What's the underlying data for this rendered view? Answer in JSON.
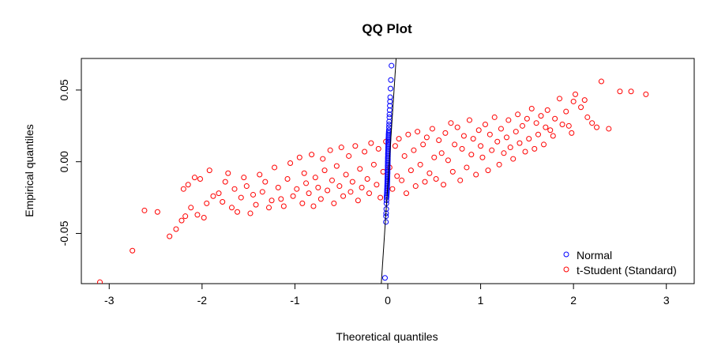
{
  "chart_data": {
    "type": "scatter",
    "title": "QQ Plot",
    "xlabel": "Theoretical quantiles",
    "ylabel": "Empirical quantiles",
    "xlim": [
      -3.3,
      3.3
    ],
    "ylim": [
      -0.085,
      0.072
    ],
    "x_ticks": [
      -3,
      -2,
      -1,
      0,
      1,
      2,
      3
    ],
    "x_tick_labels": [
      "-3",
      "-2",
      "-1",
      "0",
      "1",
      "2",
      "3"
    ],
    "y_ticks": [
      -0.05,
      0.0,
      0.05
    ],
    "y_tick_labels": [
      "-0.05",
      "0.00",
      "0.05"
    ],
    "grid": false,
    "legend_position": "bottom-right",
    "reference_line": {
      "color": "#000000",
      "points": [
        [
          -0.07,
          -0.085
        ],
        [
          0.09,
          0.072
        ]
      ]
    },
    "series": [
      {
        "name": "Normal",
        "color": "#0000ff",
        "marker": "open-circle",
        "points": [
          [
            -0.03,
            -0.081
          ],
          [
            -0.02,
            -0.042
          ],
          [
            -0.019,
            -0.038
          ],
          [
            -0.018,
            -0.036
          ],
          [
            -0.016,
            -0.033
          ],
          [
            -0.015,
            -0.029
          ],
          [
            -0.014,
            -0.027
          ],
          [
            -0.013,
            -0.025
          ],
          [
            -0.012,
            -0.024
          ],
          [
            -0.011,
            -0.023
          ],
          [
            -0.01,
            -0.022
          ],
          [
            -0.009,
            -0.021
          ],
          [
            -0.009,
            -0.02
          ],
          [
            -0.008,
            -0.019
          ],
          [
            -0.007,
            -0.018
          ],
          [
            -0.007,
            -0.017
          ],
          [
            -0.006,
            -0.016
          ],
          [
            -0.006,
            -0.015
          ],
          [
            -0.005,
            -0.014
          ],
          [
            -0.005,
            -0.013
          ],
          [
            -0.004,
            -0.012
          ],
          [
            -0.004,
            -0.011
          ],
          [
            -0.003,
            -0.01
          ],
          [
            -0.003,
            -0.009
          ],
          [
            -0.002,
            -0.008
          ],
          [
            -0.002,
            -0.007
          ],
          [
            -0.002,
            -0.006
          ],
          [
            -0.001,
            -0.005
          ],
          [
            -0.001,
            -0.004
          ],
          [
            -0.001,
            -0.003
          ],
          [
            0.0,
            -0.002
          ],
          [
            0.0,
            -0.001
          ],
          [
            0.0,
            0.0
          ],
          [
            0.001,
            0.001
          ],
          [
            0.001,
            0.002
          ],
          [
            0.001,
            0.003
          ],
          [
            0.002,
            0.004
          ],
          [
            0.002,
            0.005
          ],
          [
            0.002,
            0.006
          ],
          [
            0.003,
            0.007
          ],
          [
            0.003,
            0.008
          ],
          [
            0.004,
            0.009
          ],
          [
            0.004,
            0.01
          ],
          [
            0.005,
            0.011
          ],
          [
            0.005,
            0.012
          ],
          [
            0.006,
            0.013
          ],
          [
            0.006,
            0.014
          ],
          [
            0.007,
            0.015
          ],
          [
            0.007,
            0.016
          ],
          [
            0.008,
            0.017
          ],
          [
            0.009,
            0.018
          ],
          [
            0.009,
            0.019
          ],
          [
            0.01,
            0.02
          ],
          [
            0.011,
            0.021
          ],
          [
            0.012,
            0.022
          ],
          [
            0.013,
            0.024
          ],
          [
            0.014,
            0.026
          ],
          [
            0.015,
            0.028
          ],
          [
            0.017,
            0.031
          ],
          [
            0.018,
            0.033
          ],
          [
            0.02,
            0.036
          ],
          [
            0.022,
            0.039
          ],
          [
            0.024,
            0.042
          ],
          [
            0.026,
            0.045
          ],
          [
            0.03,
            0.051
          ],
          [
            0.033,
            0.057
          ],
          [
            0.04,
            0.067
          ]
        ]
      },
      {
        "name": "t-Student (Standard)",
        "color": "#ff0000",
        "marker": "open-circle",
        "points": [
          [
            -3.1,
            -0.084
          ],
          [
            -2.75,
            -0.062
          ],
          [
            -2.62,
            -0.034
          ],
          [
            -2.48,
            -0.035
          ],
          [
            -2.35,
            -0.052
          ],
          [
            -2.28,
            -0.047
          ],
          [
            -2.22,
            -0.041
          ],
          [
            -2.18,
            -0.038
          ],
          [
            -2.12,
            -0.032
          ],
          [
            -2.05,
            -0.037
          ],
          [
            -2.2,
            -0.019
          ],
          [
            -2.15,
            -0.016
          ],
          [
            -2.08,
            -0.011
          ],
          [
            -2.02,
            -0.012
          ],
          [
            -1.98,
            -0.039
          ],
          [
            -1.95,
            -0.029
          ],
          [
            -1.92,
            -0.006
          ],
          [
            -1.88,
            -0.024
          ],
          [
            -1.82,
            -0.022
          ],
          [
            -1.78,
            -0.028
          ],
          [
            -1.75,
            -0.014
          ],
          [
            -1.72,
            -0.008
          ],
          [
            -1.68,
            -0.032
          ],
          [
            -1.65,
            -0.019
          ],
          [
            -1.62,
            -0.035
          ],
          [
            -1.58,
            -0.025
          ],
          [
            -1.55,
            -0.011
          ],
          [
            -1.52,
            -0.017
          ],
          [
            -1.48,
            -0.036
          ],
          [
            -1.45,
            -0.023
          ],
          [
            -1.42,
            -0.03
          ],
          [
            -1.38,
            -0.009
          ],
          [
            -1.35,
            -0.021
          ],
          [
            -1.32,
            -0.014
          ],
          [
            -1.28,
            -0.032
          ],
          [
            -1.25,
            -0.027
          ],
          [
            -1.22,
            -0.004
          ],
          [
            -1.18,
            -0.018
          ],
          [
            -1.15,
            -0.026
          ],
          [
            -1.12,
            -0.031
          ],
          [
            -1.08,
            -0.012
          ],
          [
            -1.05,
            -0.001
          ],
          [
            -1.02,
            -0.024
          ],
          [
            -0.98,
            -0.019
          ],
          [
            -0.95,
            0.003
          ],
          [
            -0.92,
            -0.029
          ],
          [
            -0.9,
            -0.008
          ],
          [
            -0.88,
            -0.015
          ],
          [
            -0.85,
            -0.022
          ],
          [
            -0.82,
            0.005
          ],
          [
            -0.8,
            -0.031
          ],
          [
            -0.78,
            -0.011
          ],
          [
            -0.75,
            -0.018
          ],
          [
            -0.72,
            -0.026
          ],
          [
            -0.7,
            0.002
          ],
          [
            -0.68,
            -0.006
          ],
          [
            -0.65,
            -0.02
          ],
          [
            -0.62,
            0.008
          ],
          [
            -0.6,
            -0.013
          ],
          [
            -0.58,
            -0.029
          ],
          [
            -0.55,
            -0.003
          ],
          [
            -0.52,
            -0.017
          ],
          [
            -0.5,
            0.01
          ],
          [
            -0.48,
            -0.024
          ],
          [
            -0.45,
            -0.009
          ],
          [
            -0.42,
            0.004
          ],
          [
            -0.4,
            -0.021
          ],
          [
            -0.38,
            -0.014
          ],
          [
            -0.35,
            0.011
          ],
          [
            -0.32,
            -0.027
          ],
          [
            -0.3,
            -0.005
          ],
          [
            -0.28,
            -0.018
          ],
          [
            -0.25,
            0.007
          ],
          [
            -0.22,
            -0.012
          ],
          [
            -0.2,
            -0.022
          ],
          [
            -0.18,
            0.013
          ],
          [
            -0.15,
            -0.002
          ],
          [
            -0.12,
            -0.016
          ],
          [
            -0.1,
            0.009
          ],
          [
            -0.08,
            -0.025
          ],
          [
            -0.05,
            -0.007
          ],
          [
            -0.02,
            0.014
          ],
          [
            0.02,
            -0.004
          ],
          [
            0.05,
            -0.019
          ],
          [
            0.08,
            0.011
          ],
          [
            0.1,
            -0.01
          ],
          [
            0.12,
            0.016
          ],
          [
            0.15,
            -0.013
          ],
          [
            0.18,
            0.004
          ],
          [
            0.2,
            -0.022
          ],
          [
            0.22,
            0.019
          ],
          [
            0.25,
            -0.006
          ],
          [
            0.28,
            0.008
          ],
          [
            0.3,
            -0.017
          ],
          [
            0.32,
            0.021
          ],
          [
            0.35,
            -0.002
          ],
          [
            0.38,
            0.012
          ],
          [
            0.4,
            -0.014
          ],
          [
            0.42,
            0.017
          ],
          [
            0.45,
            -0.008
          ],
          [
            0.48,
            0.023
          ],
          [
            0.5,
            0.003
          ],
          [
            0.52,
            -0.012
          ],
          [
            0.55,
            0.015
          ],
          [
            0.58,
            0.006
          ],
          [
            0.6,
            -0.016
          ],
          [
            0.62,
            0.02
          ],
          [
            0.65,
            0.001
          ],
          [
            0.68,
            0.027
          ],
          [
            0.7,
            -0.007
          ],
          [
            0.72,
            0.012
          ],
          [
            0.75,
            0.024
          ],
          [
            0.78,
            -0.013
          ],
          [
            0.8,
            0.009
          ],
          [
            0.82,
            0.018
          ],
          [
            0.85,
            -0.004
          ],
          [
            0.88,
            0.029
          ],
          [
            0.9,
            0.005
          ],
          [
            0.92,
            0.016
          ],
          [
            0.95,
            -0.009
          ],
          [
            0.98,
            0.022
          ],
          [
            1.0,
            0.011
          ],
          [
            1.02,
            0.003
          ],
          [
            1.05,
            0.026
          ],
          [
            1.08,
            -0.006
          ],
          [
            1.1,
            0.019
          ],
          [
            1.12,
            0.008
          ],
          [
            1.15,
            0.031
          ],
          [
            1.18,
            0.014
          ],
          [
            1.2,
            -0.002
          ],
          [
            1.22,
            0.023
          ],
          [
            1.25,
            0.006
          ],
          [
            1.28,
            0.017
          ],
          [
            1.3,
            0.029
          ],
          [
            1.32,
            0.01
          ],
          [
            1.35,
            0.002
          ],
          [
            1.38,
            0.021
          ],
          [
            1.4,
            0.033
          ],
          [
            1.42,
            0.013
          ],
          [
            1.45,
            0.025
          ],
          [
            1.48,
            0.007
          ],
          [
            1.5,
            0.03
          ],
          [
            1.52,
            0.016
          ],
          [
            1.55,
            0.037
          ],
          [
            1.58,
            0.009
          ],
          [
            1.6,
            0.027
          ],
          [
            1.62,
            0.019
          ],
          [
            1.65,
            0.032
          ],
          [
            1.68,
            0.012
          ],
          [
            1.7,
            0.024
          ],
          [
            1.72,
            0.036
          ],
          [
            1.75,
            0.022
          ],
          [
            1.78,
            0.018
          ],
          [
            1.8,
            0.03
          ],
          [
            1.85,
            0.044
          ],
          [
            1.88,
            0.026
          ],
          [
            1.92,
            0.035
          ],
          [
            1.95,
            0.025
          ],
          [
            1.98,
            0.02
          ],
          [
            2.0,
            0.042
          ],
          [
            2.02,
            0.047
          ],
          [
            2.08,
            0.038
          ],
          [
            2.12,
            0.043
          ],
          [
            2.15,
            0.031
          ],
          [
            2.2,
            0.027
          ],
          [
            2.25,
            0.024
          ],
          [
            2.3,
            0.056
          ],
          [
            2.38,
            0.023
          ],
          [
            2.5,
            0.049
          ],
          [
            2.62,
            0.049
          ],
          [
            2.78,
            0.047
          ]
        ]
      }
    ]
  }
}
